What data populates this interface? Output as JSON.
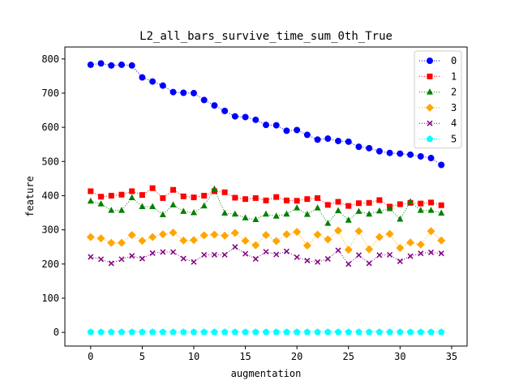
{
  "chart_data": {
    "type": "line",
    "title": "L2_all_bars_survive_time_sum_0th_True",
    "xlabel": "augmentation",
    "ylabel": "feature",
    "xlim": [
      -2.5,
      36.5
    ],
    "ylim": [
      -40,
      835
    ],
    "xticks": [
      0,
      5,
      10,
      15,
      20,
      25,
      30,
      35
    ],
    "yticks": [
      0,
      100,
      200,
      300,
      400,
      500,
      600,
      700,
      800
    ],
    "legend_position": "top-right",
    "grid": false,
    "x": [
      0,
      1,
      2,
      3,
      4,
      5,
      6,
      7,
      8,
      9,
      10,
      11,
      12,
      13,
      14,
      15,
      16,
      17,
      18,
      19,
      20,
      21,
      22,
      23,
      24,
      25,
      26,
      27,
      28,
      29,
      30,
      31,
      32,
      33,
      34
    ],
    "series": [
      {
        "name": "0",
        "color": "#0000ff",
        "marker": "circle",
        "values": [
          783,
          787,
          781,
          783,
          781,
          746,
          734,
          722,
          703,
          701,
          700,
          680,
          664,
          648,
          632,
          630,
          622,
          607,
          606,
          590,
          592,
          578,
          564,
          567,
          560,
          558,
          543,
          539,
          530,
          525,
          523,
          520,
          515,
          510,
          490
        ]
      },
      {
        "name": "1",
        "color": "#ff0000",
        "marker": "square",
        "values": [
          413,
          397,
          400,
          403,
          413,
          402,
          422,
          393,
          417,
          398,
          395,
          400,
          413,
          410,
          394,
          390,
          393,
          386,
          396,
          386,
          385,
          390,
          393,
          373,
          382,
          370,
          378,
          379,
          387,
          368,
          375,
          379,
          377,
          380,
          372
        ]
      },
      {
        "name": "2",
        "color": "#008000",
        "marker": "triangle",
        "values": [
          384,
          376,
          357,
          357,
          394,
          368,
          368,
          344,
          373,
          354,
          350,
          370,
          419,
          349,
          346,
          335,
          330,
          346,
          340,
          346,
          364,
          345,
          364,
          319,
          356,
          328,
          354,
          346,
          355,
          362,
          331,
          382,
          357,
          357,
          349
        ]
      },
      {
        "name": "3",
        "color": "#ffa500",
        "marker": "diamond",
        "values": [
          279,
          275,
          262,
          262,
          285,
          268,
          279,
          287,
          292,
          269,
          270,
          284,
          286,
          283,
          291,
          268,
          255,
          285,
          267,
          287,
          294,
          254,
          286,
          272,
          298,
          242,
          296,
          243,
          279,
          288,
          247,
          263,
          257,
          296,
          269
        ]
      },
      {
        "name": "4",
        "color": "#800080",
        "marker": "x",
        "values": [
          221,
          214,
          202,
          214,
          224,
          216,
          232,
          235,
          235,
          216,
          206,
          227,
          227,
          227,
          250,
          230,
          215,
          236,
          228,
          237,
          220,
          210,
          206,
          215,
          240,
          200,
          226,
          202,
          226,
          227,
          208,
          223,
          231,
          234,
          231
        ]
      },
      {
        "name": "5",
        "color": "#00ffff",
        "marker": "pentagon",
        "values": [
          1,
          1,
          1,
          1,
          1,
          1,
          1,
          1,
          1,
          1,
          1,
          1,
          1,
          1,
          1,
          1,
          1,
          1,
          1,
          1,
          1,
          1,
          1,
          1,
          1,
          1,
          1,
          1,
          1,
          1,
          1,
          1,
          1,
          1,
          1
        ]
      }
    ]
  }
}
